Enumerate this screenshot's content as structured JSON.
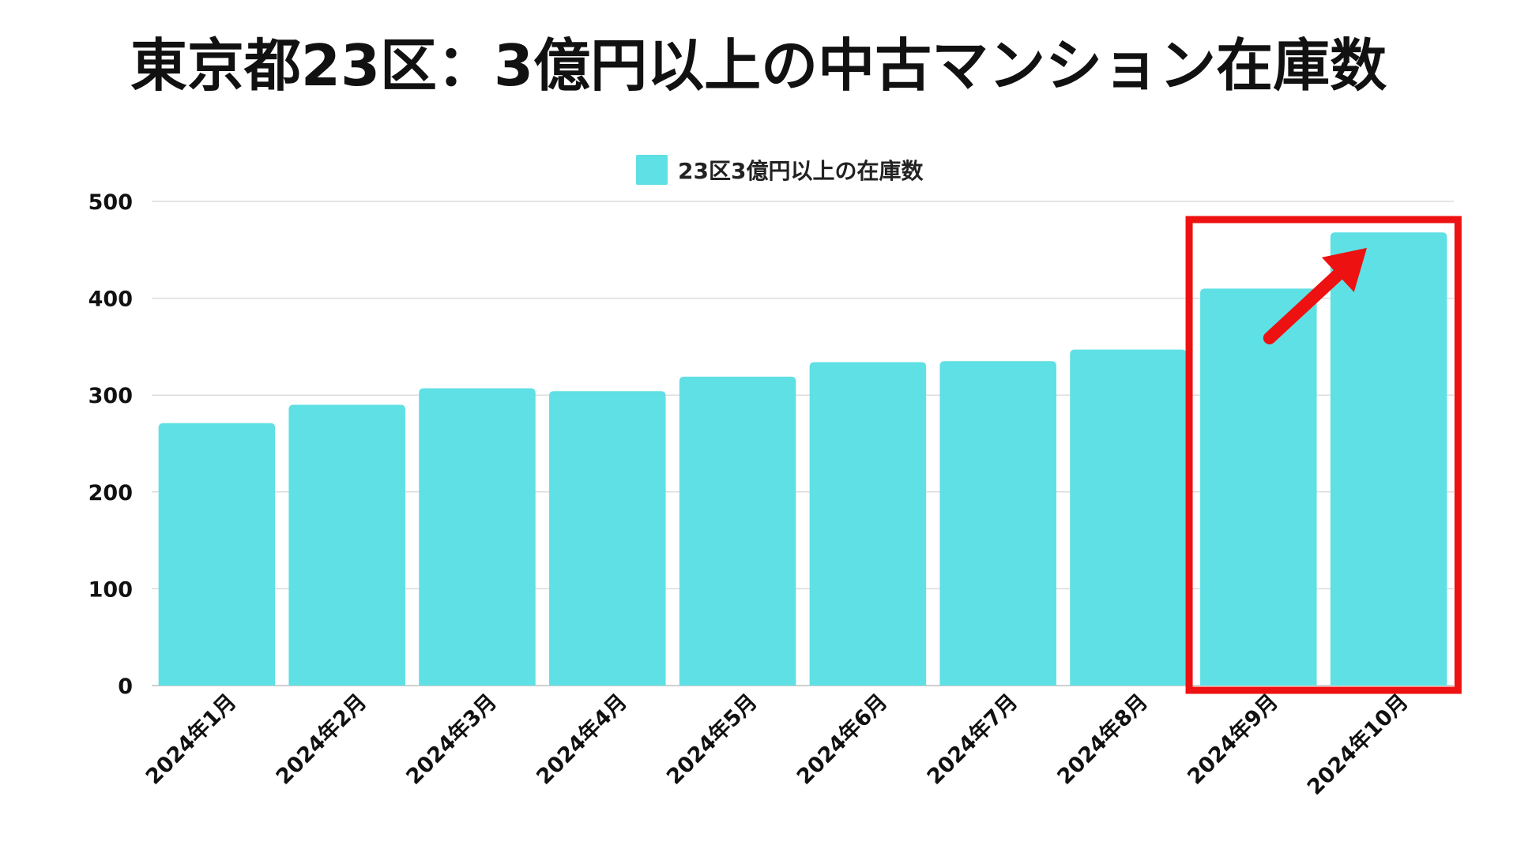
{
  "chart_data": {
    "type": "bar",
    "title": "東京都23区：3億円以上の中古マンション在庫数",
    "categories": [
      "2024年1月",
      "2024年2月",
      "2024年3月",
      "2024年4月",
      "2024年5月",
      "2024年6月",
      "2024年7月",
      "2024年8月",
      "2024年9月",
      "2024年10月"
    ],
    "series": [
      {
        "name": "23区3億円以上の在庫数",
        "values": [
          271,
          290,
          307,
          304,
          319,
          334,
          335,
          347,
          410,
          468
        ],
        "color": "#5fe0e4"
      }
    ],
    "xlabel": "",
    "ylabel": "",
    "ylim": [
      0,
      500
    ],
    "yticks": [
      0,
      100,
      200,
      300,
      400,
      500
    ],
    "grid": true,
    "legend_position": "top-center",
    "highlight": {
      "categories": [
        "2024年9月",
        "2024年10月"
      ],
      "color": "#ee1111",
      "arrow": "upward-trend"
    }
  }
}
